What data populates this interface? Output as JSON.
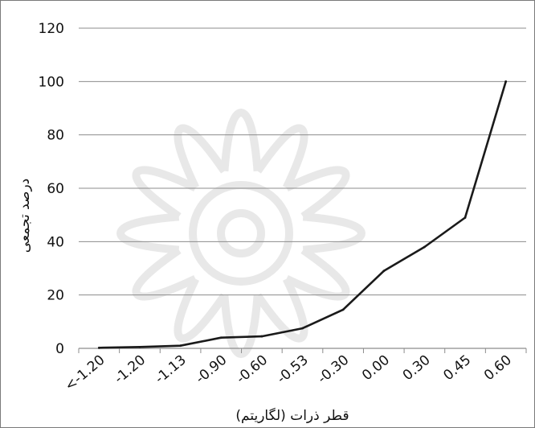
{
  "chart_data": {
    "type": "line",
    "title": "",
    "xlabel": "قطر ذرات (لگاریتم)",
    "ylabel": "درصد تجمعی",
    "categories": [
      "<-1.20",
      "-1.20",
      "-1.13",
      "-0.90",
      "-0.60",
      "-0.53",
      "-0.30",
      "0.00",
      "0.30",
      "0.45",
      "0.60"
    ],
    "series": [
      {
        "values": [
          0.2,
          0.5,
          1.0,
          4.0,
          4.5,
          7.5,
          14.5,
          29.0,
          38.0,
          49.0,
          100.0
        ]
      }
    ],
    "yticks": [
      "0",
      "20",
      "40",
      "60",
      "80",
      "100",
      "120"
    ],
    "ylim": [
      0,
      120
    ],
    "grid": true,
    "legend": "none",
    "colors": {
      "line": "#1a1a1a",
      "grid": "#8c8c8c",
      "axis": "#8c8c8c"
    },
    "watermark": "floral-rosette-logo"
  }
}
